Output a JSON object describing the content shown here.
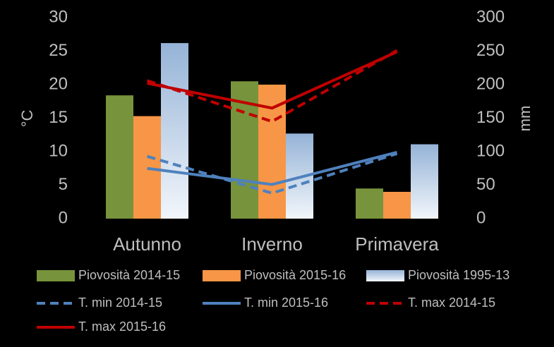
{
  "chart_data": {
    "type": "bar",
    "categories": [
      "Autunno",
      "Inverno",
      "Primavera"
    ],
    "y_label": "°C",
    "y2_label": "mm",
    "ylim": [
      0,
      30
    ],
    "yticks": [
      0,
      5,
      10,
      15,
      20,
      25,
      30
    ],
    "y2lim": [
      0,
      300
    ],
    "y2ticks": [
      0,
      50,
      100,
      150,
      200,
      250,
      300
    ],
    "grid": false,
    "legend": "bottom",
    "series": [
      {
        "name": "Piovosità 2014-15",
        "type": "bar",
        "axis": "y2",
        "color": "#77933c",
        "values": [
          184,
          205,
          45
        ]
      },
      {
        "name": "Piovosità 2015-16",
        "type": "bar",
        "axis": "y2",
        "color": "#f79646",
        "values": [
          153,
          200,
          40
        ]
      },
      {
        "name": "Piovosità 1995-13",
        "type": "bar",
        "axis": "y2",
        "color": "#95b3d7",
        "values": [
          262,
          127,
          111
        ]
      },
      {
        "name": "T. min 2014-15",
        "type": "line",
        "style": "dashed",
        "color": "#4f81bd",
        "values": [
          9.3,
          3.8,
          9.7
        ]
      },
      {
        "name": "T. min 2015-16",
        "type": "line",
        "style": "solid",
        "color": "#4f81bd",
        "values": [
          7.5,
          5.1,
          9.9
        ]
      },
      {
        "name": "T. max 2014-15",
        "type": "line",
        "style": "dashed",
        "color": "#c00000",
        "values": [
          20.6,
          14.5,
          25.1
        ]
      },
      {
        "name": "T. max 2015-16",
        "type": "line",
        "style": "solid",
        "color": "#c00000",
        "values": [
          20.2,
          16.5,
          24.9
        ]
      }
    ]
  }
}
